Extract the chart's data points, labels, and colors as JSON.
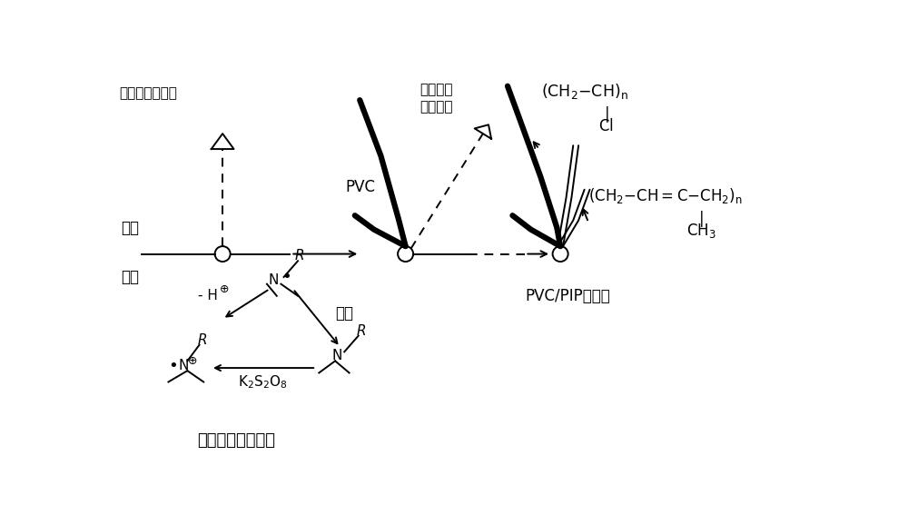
{
  "bg_color": "#ffffff",
  "fig_width": 10.0,
  "fig_height": 5.78,
  "dpi": 100,
  "xlim": [
    0,
    10
  ],
  "ylim": [
    0,
    5.78
  ],
  "labels": {
    "chlorovinyl_poly": "氯乙烯一次聚合",
    "isoprene_poly": "异戊二烯\n二次聚合",
    "oil_phase": "油相",
    "water_phase": "水相",
    "pvc_label": "PVC",
    "pvc_pip": "PVC/PIP共聚物",
    "redox": "氧化还原引发反应",
    "minus_h": "- H",
    "yinfa": "引发",
    "k2s2o8": "K₂S₂O₈"
  }
}
